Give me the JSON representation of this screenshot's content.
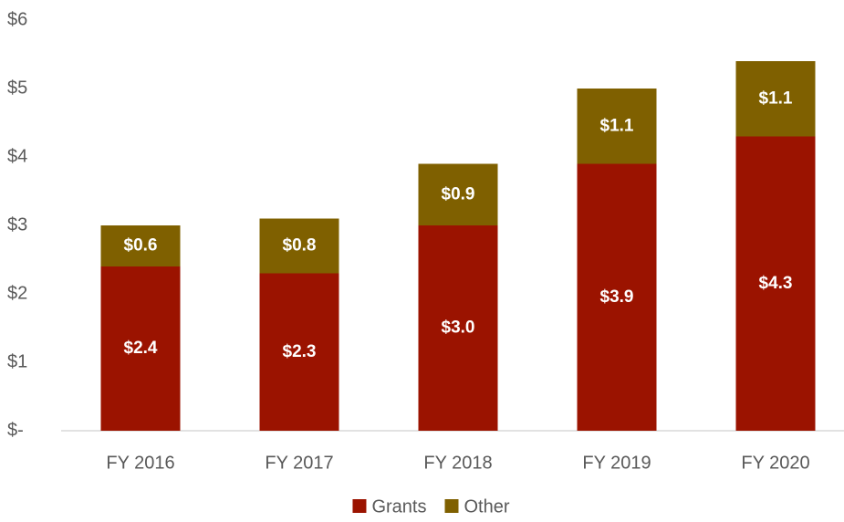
{
  "chart_data": {
    "type": "stacked_bar",
    "categories": [
      "FY 2016",
      "FY 2017",
      "FY 2018",
      "FY 2019",
      "FY 2020"
    ],
    "series": [
      {
        "name": "Grants",
        "color": "#9b1300",
        "values": [
          2.4,
          2.3,
          3.0,
          3.9,
          4.3
        ],
        "value_labels": [
          "$2.4",
          "$2.3",
          "$3.0",
          "$3.9",
          "$4.3"
        ]
      },
      {
        "name": "Other",
        "color": "#7f6000",
        "values": [
          0.6,
          0.8,
          0.9,
          1.1,
          1.1
        ],
        "value_labels": [
          "$0.6",
          "$0.8",
          "$0.9",
          "$1.1",
          "$1.1"
        ]
      }
    ],
    "ylim": [
      0,
      6
    ],
    "yticks": [
      {
        "value": 0,
        "label": "$-"
      },
      {
        "value": 1,
        "label": "$1"
      },
      {
        "value": 2,
        "label": "$2"
      },
      {
        "value": 3,
        "label": "$3"
      },
      {
        "value": 4,
        "label": "$4"
      },
      {
        "value": 5,
        "label": "$5"
      },
      {
        "value": 6,
        "label": "$6"
      }
    ],
    "legend": "bottom"
  }
}
